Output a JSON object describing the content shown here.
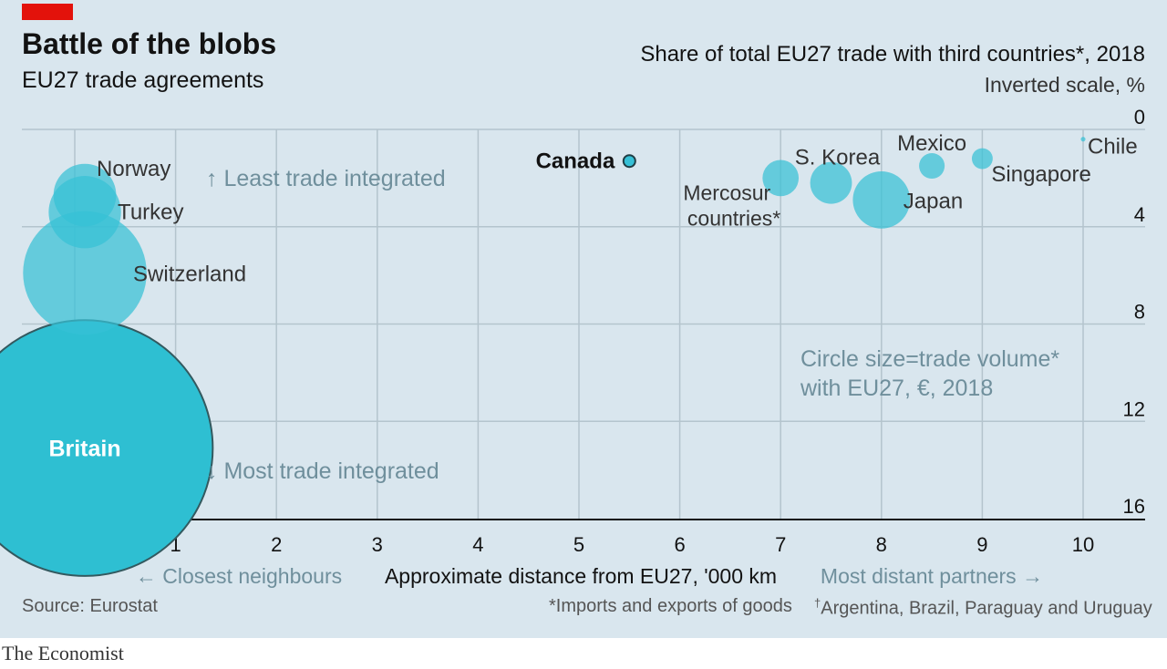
{
  "header": {
    "title": "Battle of the blobs",
    "subtitle": "EU27 trade agreements",
    "y_axis_title": "Share of total EU27 trade with third countries*, 2018",
    "y_axis_subtitle": "Inverted scale, %"
  },
  "footer": {
    "source": "Source: Eurostat",
    "footnote_star": "*Imports and exports of goods",
    "footnote_dagger_mark": "†",
    "footnote_dagger": "Argentina, Brazil, Paraguay and Uruguay",
    "brand": "The Economist"
  },
  "chart_data": {
    "type": "scatter",
    "title": "Battle of the blobs",
    "subtitle": "EU27 trade agreements",
    "xlabel": "Approximate distance from EU27, '000 km",
    "ylabel": "Share of total EU27 trade with third countries*, 2018",
    "y_note": "Inverted scale, %",
    "xlim": [
      -0.5,
      10.5
    ],
    "ylim": [
      0,
      16
    ],
    "y_inverted": true,
    "x_ticks": [
      0,
      1,
      2,
      3,
      4,
      5,
      6,
      7,
      8,
      9,
      10
    ],
    "y_ticks": [
      0,
      4,
      8,
      12,
      16
    ],
    "grid": true,
    "points": [
      {
        "name": "Norway",
        "x": 0.1,
        "y": 2.7,
        "volume": 18
      },
      {
        "name": "Turkey",
        "x": 0.1,
        "y": 3.4,
        "volume": 24
      },
      {
        "name": "Switzerland",
        "x": 0.1,
        "y": 5.9,
        "volume": 70
      },
      {
        "name": "Britain",
        "x": 0.1,
        "y": 13.1,
        "volume": 300
      },
      {
        "name": "Canada",
        "x": 5.5,
        "y": 1.3,
        "volume": 2
      },
      {
        "name": "Mercosur countries*",
        "x": 7.0,
        "y": 2.0,
        "volume": 6
      },
      {
        "name": "S. Korea",
        "x": 7.5,
        "y": 2.2,
        "volume": 8
      },
      {
        "name": "Japan",
        "x": 8.0,
        "y": 2.9,
        "volume": 15
      },
      {
        "name": "Mexico",
        "x": 8.5,
        "y": 1.5,
        "volume": 3
      },
      {
        "name": "Singapore",
        "x": 9.0,
        "y": 1.2,
        "volume": 2
      },
      {
        "name": "Chile",
        "x": 10.0,
        "y": 0.4,
        "volume": 0.1
      }
    ],
    "annotations": [
      "↑ Least trade integrated",
      "↓ Most trade integrated",
      "Circle size=trade volume*",
      "with EU27, €, 2018",
      "← Closest neighbours",
      "Most distant partners →"
    ],
    "colors": {
      "bubble": "#36c0d6",
      "britain": "#2ebfd2",
      "outline": "#33595f",
      "annotation": "#6f8f9c",
      "grid": "#b4c4cd"
    }
  }
}
